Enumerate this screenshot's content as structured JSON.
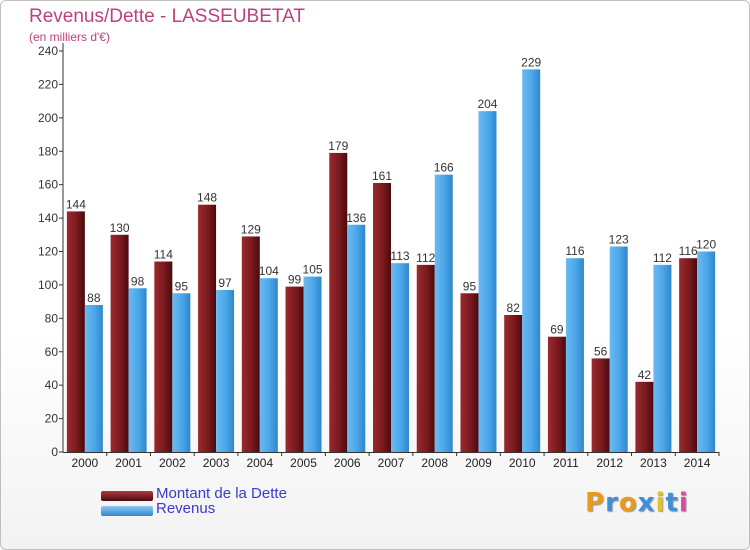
{
  "chart_data": {
    "type": "bar",
    "title": "Revenus/Dette - LASSEUBETAT",
    "subtitle": "(en milliers d'€)",
    "categories": [
      "2000",
      "2001",
      "2002",
      "2003",
      "2004",
      "2005",
      "2006",
      "2007",
      "2008",
      "2009",
      "2010",
      "2011",
      "2012",
      "2013",
      "2014"
    ],
    "series": [
      {
        "name": "Montant de la Dette",
        "values": [
          144,
          130,
          114,
          148,
          129,
          99,
          179,
          161,
          112,
          95,
          82,
          69,
          56,
          42,
          116
        ],
        "color": "#7a1a1e"
      },
      {
        "name": "Revenus",
        "values": [
          88,
          98,
          95,
          97,
          104,
          105,
          136,
          113,
          166,
          204,
          229,
          116,
          123,
          112,
          120
        ],
        "color": "#4aa6e8"
      }
    ],
    "ylim": [
      0,
      240
    ],
    "yticks": [
      0,
      20,
      40,
      60,
      80,
      100,
      120,
      140,
      160,
      180,
      200,
      220,
      240
    ],
    "xlabel": "",
    "ylabel": "",
    "grid": false,
    "legend": "bottom-left"
  },
  "logo": {
    "letters": [
      "P",
      "r",
      "o",
      "x",
      "i",
      "t",
      "i"
    ],
    "colors": [
      "#e79a1c",
      "#3e8ed8",
      "#e79a1c",
      "#3e8ed8",
      "#e6c21c",
      "#3e8ed8",
      "#d84aa6"
    ]
  }
}
